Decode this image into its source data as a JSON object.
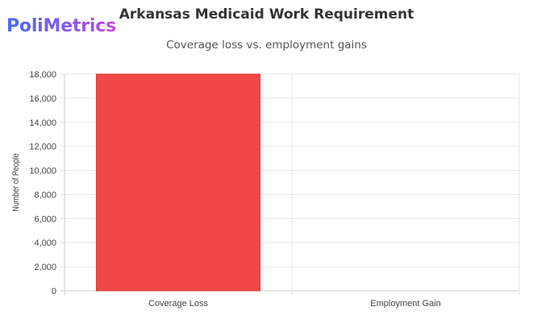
{
  "brand": {
    "name": "PoliMetrics"
  },
  "chart_data": {
    "type": "bar",
    "title": "Arkansas Medicaid Work Requirement",
    "subtitle": "Coverage loss vs. employment gains",
    "xlabel": "",
    "ylabel": "Number of People",
    "categories": [
      "Coverage Loss",
      "Employment Gain"
    ],
    "values": [
      18000,
      0
    ],
    "ylim": [
      0,
      18000
    ],
    "yticks": [
      0,
      2000,
      4000,
      6000,
      8000,
      10000,
      12000,
      14000,
      16000,
      18000
    ],
    "ytick_labels": [
      "0",
      "2,000",
      "4,000",
      "6,000",
      "8,000",
      "10,000",
      "12,000",
      "14,000",
      "16,000",
      "18,000"
    ],
    "grid": true,
    "legend": "none",
    "colors": {
      "bar_fill": "#f04747",
      "bar_stroke": "#d93a3a",
      "grid": "#e6e6e6",
      "axis": "#cccccc"
    }
  }
}
